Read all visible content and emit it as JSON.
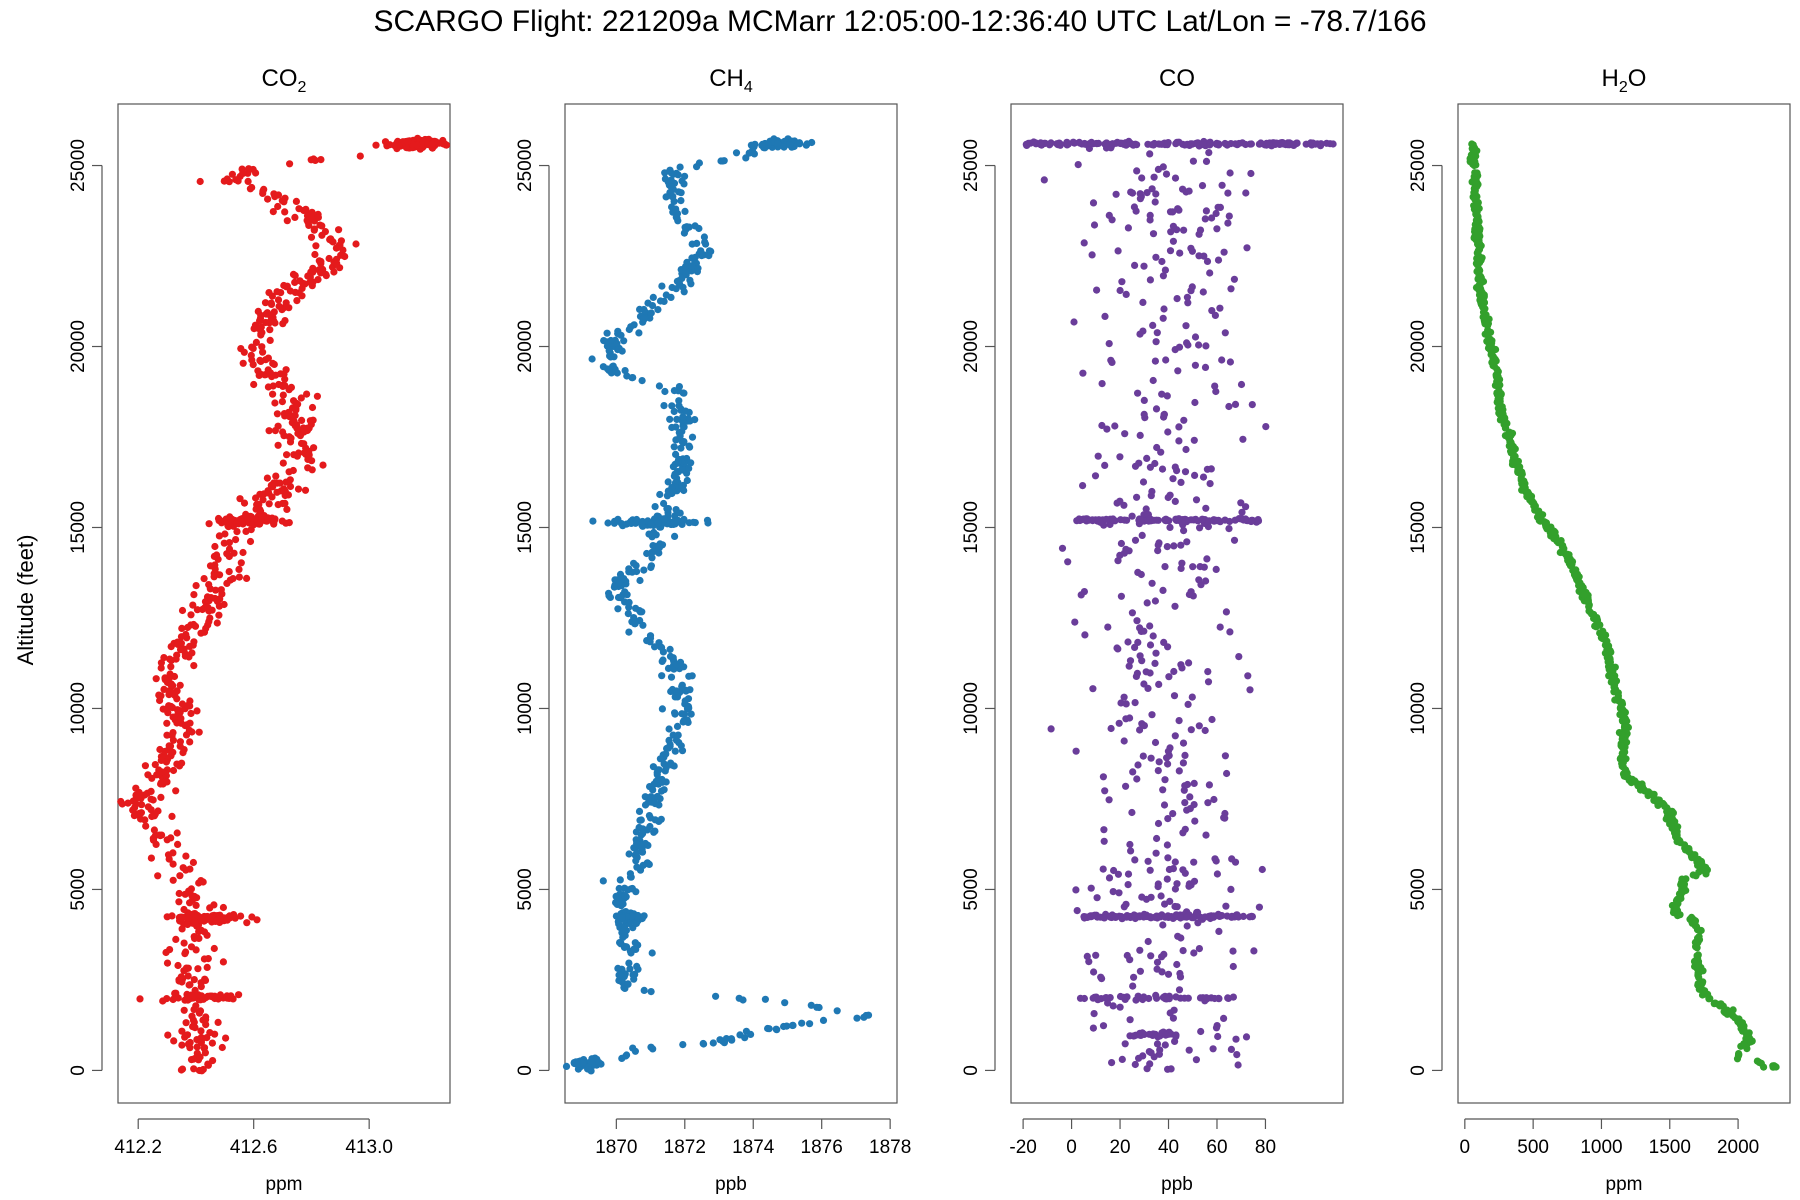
{
  "figure_title": "SCARGO Flight: 221209a  MCMarr  12:05:00-12:36:40 UTC  Lat/Lon = -78.7/166",
  "shared_ylabel": "Altitude (feet)",
  "chart_data": [
    {
      "type": "scatter",
      "title": "CO",
      "title_sub": "2",
      "xlabel": "ppm",
      "ylabel": "Altitude (feet)",
      "color": "#e41a1c",
      "xlim": [
        412.13,
        413.28
      ],
      "ylim": [
        -900,
        26700
      ],
      "xticks": [
        412.2,
        412.6,
        413.0
      ],
      "xtick_labels": [
        "412.2",
        "412.6",
        "413.0"
      ],
      "yticks": [
        0,
        5000,
        10000,
        15000,
        20000,
        25000
      ],
      "ytick_labels": [
        "0",
        "5000",
        "10000",
        "15000",
        "20000",
        "25000"
      ],
      "profile": [
        [
          0,
          412.42
        ],
        [
          500,
          412.41
        ],
        [
          1000,
          412.4
        ],
        [
          1500,
          412.41
        ],
        [
          2000,
          412.39
        ],
        [
          2500,
          412.38
        ],
        [
          3000,
          412.39
        ],
        [
          3500,
          412.4
        ],
        [
          4000,
          412.41
        ],
        [
          4500,
          412.4
        ],
        [
          5000,
          412.38
        ],
        [
          5500,
          412.34
        ],
        [
          6000,
          412.31
        ],
        [
          6500,
          412.29
        ],
        [
          7000,
          412.23
        ],
        [
          7300,
          412.19
        ],
        [
          7800,
          412.26
        ],
        [
          8500,
          412.3
        ],
        [
          9000,
          412.32
        ],
        [
          9500,
          412.34
        ],
        [
          10000,
          412.33
        ],
        [
          10500,
          412.31
        ],
        [
          11000,
          412.3
        ],
        [
          11500,
          412.33
        ],
        [
          12000,
          412.37
        ],
        [
          12500,
          412.42
        ],
        [
          13000,
          412.45
        ],
        [
          13500,
          412.48
        ],
        [
          14000,
          412.51
        ],
        [
          14500,
          412.52
        ],
        [
          15000,
          412.56
        ],
        [
          15300,
          412.62
        ],
        [
          15800,
          412.65
        ],
        [
          16300,
          412.72
        ],
        [
          16800,
          412.78
        ],
        [
          17300,
          412.76
        ],
        [
          17800,
          412.73
        ],
        [
          18300,
          412.74
        ],
        [
          18800,
          412.71
        ],
        [
          19300,
          412.64
        ],
        [
          19800,
          412.57
        ],
        [
          20300,
          412.6
        ],
        [
          20800,
          412.66
        ],
        [
          21300,
          412.69
        ],
        [
          21800,
          412.77
        ],
        [
          22300,
          412.87
        ],
        [
          22800,
          412.86
        ],
        [
          23300,
          412.82
        ],
        [
          23800,
          412.74
        ],
        [
          24200,
          412.67
        ],
        [
          24600,
          412.52
        ],
        [
          25000,
          412.62
        ],
        [
          25300,
          412.96
        ],
        [
          25600,
          413.15
        ]
      ],
      "jitter": 0.035,
      "count": 700,
      "clusters": [
        [
          4200,
          412.43,
          0.06,
          90
        ],
        [
          2000,
          412.4,
          0.07,
          40
        ],
        [
          15200,
          412.58,
          0.06,
          70
        ],
        [
          25600,
          413.17,
          0.05,
          110
        ]
      ]
    },
    {
      "type": "scatter",
      "title": "CH",
      "title_sub": "4",
      "xlabel": "ppb",
      "ylabel": "",
      "color": "#1f78b4",
      "xlim": [
        1868.5,
        1878.2
      ],
      "ylim": [
        -900,
        26700
      ],
      "xticks": [
        1870,
        1872,
        1874,
        1876,
        1878
      ],
      "xtick_labels": [
        "1870",
        "1872",
        "1874",
        "1876",
        "1878"
      ],
      "yticks": [
        0,
        5000,
        10000,
        15000,
        20000,
        25000
      ],
      "ytick_labels": [
        "0",
        "5000",
        "10000",
        "15000",
        "20000",
        "25000"
      ],
      "profile": [
        [
          0,
          1869.1
        ],
        [
          150,
          1869.3
        ],
        [
          300,
          1869.8
        ],
        [
          600,
          1870.8
        ],
        [
          800,
          1873.2
        ],
        [
          1100,
          1874.3
        ],
        [
          1400,
          1876.2
        ],
        [
          1550,
          1877.6
        ],
        [
          1800,
          1875.6
        ],
        [
          2000,
          1873.6
        ],
        [
          2100,
          1871.6
        ],
        [
          2300,
          1870.3
        ],
        [
          2700,
          1870.3
        ],
        [
          3200,
          1870.4
        ],
        [
          3800,
          1870.3
        ],
        [
          4300,
          1870.4
        ],
        [
          5000,
          1870.2
        ],
        [
          5600,
          1870.7
        ],
        [
          6500,
          1870.8
        ],
        [
          7300,
          1871.1
        ],
        [
          8000,
          1871.3
        ],
        [
          8600,
          1871.5
        ],
        [
          9200,
          1871.7
        ],
        [
          9800,
          1871.9
        ],
        [
          10400,
          1871.9
        ],
        [
          11000,
          1871.8
        ],
        [
          11600,
          1871.4
        ],
        [
          12100,
          1870.7
        ],
        [
          12600,
          1870.4
        ],
        [
          13300,
          1869.9
        ],
        [
          13800,
          1870.5
        ],
        [
          14300,
          1871.1
        ],
        [
          14800,
          1871.2
        ],
        [
          15200,
          1871.5
        ],
        [
          15700,
          1871.7
        ],
        [
          16300,
          1871.9
        ],
        [
          16900,
          1871.9
        ],
        [
          17500,
          1872.0
        ],
        [
          18200,
          1871.9
        ],
        [
          18800,
          1871.8
        ],
        [
          19300,
          1870.0
        ],
        [
          19800,
          1869.8
        ],
        [
          20300,
          1870.1
        ],
        [
          20800,
          1870.9
        ],
        [
          21300,
          1871.1
        ],
        [
          21800,
          1872.0
        ],
        [
          22300,
          1872.2
        ],
        [
          22700,
          1872.7
        ],
        [
          23200,
          1872.1
        ],
        [
          23700,
          1871.8
        ],
        [
          24200,
          1871.9
        ],
        [
          24700,
          1871.6
        ],
        [
          25000,
          1872.1
        ],
        [
          25200,
          1873.6
        ],
        [
          25600,
          1874.6
        ]
      ],
      "jitter": 0.18,
      "count": 600,
      "clusters": [
        [
          15150,
          1871.0,
          0.8,
          60
        ],
        [
          4250,
          1870.4,
          0.18,
          40
        ],
        [
          25600,
          1874.7,
          0.35,
          60
        ],
        [
          200,
          1869.2,
          0.25,
          30
        ]
      ]
    },
    {
      "type": "scatter",
      "title": "CO",
      "title_sub": "",
      "xlabel": "ppb",
      "ylabel": "",
      "color": "#6a3d9a",
      "xlim": [
        -25,
        112
      ],
      "ylim": [
        -900,
        26700
      ],
      "xticks": [
        -20,
        0,
        20,
        40,
        60,
        80
      ],
      "xtick_labels": [
        "-20",
        "0",
        "20",
        "40",
        "60",
        "80"
      ],
      "yticks": [
        0,
        5000,
        10000,
        15000,
        20000,
        25000
      ],
      "ytick_labels": [
        "0",
        "5000",
        "10000",
        "15000",
        "20000",
        "25000"
      ],
      "center": 38,
      "spread": 18,
      "count": 520,
      "bands": [
        [
          25600,
          -20,
          108,
          170
        ],
        [
          15200,
          2,
          78,
          100
        ],
        [
          4250,
          5,
          75,
          110
        ],
        [
          2000,
          2,
          72,
          40
        ],
        [
          1000,
          25,
          45,
          25
        ]
      ]
    },
    {
      "type": "scatter",
      "title": "H",
      "title_sub": "2",
      "title_suffix": "O",
      "xlabel": "ppm",
      "ylabel": "",
      "color": "#33a02c",
      "xlim": [
        -50,
        2380
      ],
      "ylim": [
        -900,
        26700
      ],
      "xticks": [
        0,
        500,
        1000,
        1500,
        2000
      ],
      "xtick_labels": [
        "0",
        "500",
        "1000",
        "1500",
        "2000"
      ],
      "yticks": [
        0,
        5000,
        10000,
        15000,
        20000,
        25000
      ],
      "ytick_labels": [
        "0",
        "5000",
        "10000",
        "15000",
        "20000",
        "25000"
      ],
      "profile": [
        [
          100,
          2290
        ],
        [
          250,
          2100
        ],
        [
          400,
          2000
        ],
        [
          500,
          2010
        ],
        [
          800,
          2080
        ],
        [
          1100,
          2060
        ],
        [
          1500,
          1980
        ],
        [
          1800,
          1860
        ],
        [
          2100,
          1740
        ],
        [
          2500,
          1720
        ],
        [
          3200,
          1700
        ],
        [
          3800,
          1710
        ],
        [
          4200,
          1660
        ],
        [
          4300,
          1560
        ],
        [
          4500,
          1540
        ],
        [
          4800,
          1580
        ],
        [
          5300,
          1600
        ],
        [
          5500,
          1770
        ],
        [
          5800,
          1700
        ],
        [
          6300,
          1570
        ],
        [
          6600,
          1540
        ],
        [
          7200,
          1490
        ],
        [
          7800,
          1300
        ],
        [
          8200,
          1170
        ],
        [
          8800,
          1150
        ],
        [
          9500,
          1180
        ],
        [
          10000,
          1150
        ],
        [
          10500,
          1100
        ],
        [
          11000,
          1070
        ],
        [
          11800,
          1040
        ],
        [
          12500,
          950
        ],
        [
          13200,
          870
        ],
        [
          14000,
          780
        ],
        [
          14600,
          690
        ],
        [
          15000,
          620
        ],
        [
          15200,
          560
        ],
        [
          15500,
          520
        ],
        [
          16000,
          450
        ],
        [
          16800,
          370
        ],
        [
          17500,
          330
        ],
        [
          18200,
          260
        ],
        [
          19000,
          240
        ],
        [
          19800,
          200
        ],
        [
          20500,
          160
        ],
        [
          21200,
          130
        ],
        [
          22000,
          110
        ],
        [
          22800,
          100
        ],
        [
          23500,
          90
        ],
        [
          24300,
          80
        ],
        [
          25000,
          70
        ],
        [
          25600,
          65
        ]
      ],
      "jitter": 12,
      "count": 900
    }
  ]
}
